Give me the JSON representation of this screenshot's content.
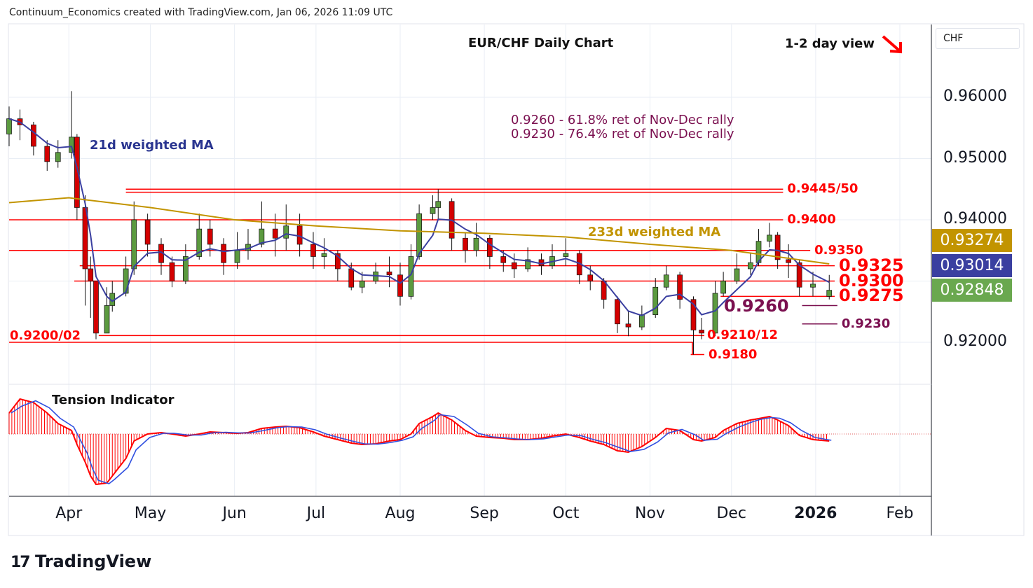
{
  "header": {
    "credit": "Continuum_Economics created with TradingView.com, Jan 06, 2026 11:09 UTC",
    "title": "EUR/CHF Daily Chart",
    "view": "1-2 day view",
    "currency": "CHF",
    "logo": "TradingView"
  },
  "colors": {
    "up": "#5b9a3f",
    "down": "#d40000",
    "ma21": "#3a3fa0",
    "ma233": "#c29400",
    "level": "#ff0000",
    "fib": "#7b1050",
    "tension_hist": "#ff0000",
    "tension_line": "#3050e0"
  },
  "chart_data": {
    "type": "candlestick",
    "title": "EUR/CHF Daily Chart",
    "ylim": [
      0.914,
      0.965
    ],
    "y_ticks": [
      "0.96000",
      "0.95000",
      "0.94000",
      "0.92000"
    ],
    "y_tick_values": [
      0.96,
      0.95,
      0.94,
      0.92
    ],
    "x_ticks": [
      {
        "label": "Apr",
        "date": "2025-04-01"
      },
      {
        "label": "May",
        "date": "2025-05-01"
      },
      {
        "label": "Jun",
        "date": "2025-06-01"
      },
      {
        "label": "Jul",
        "date": "2025-07-01"
      },
      {
        "label": "Aug",
        "date": "2025-08-01"
      },
      {
        "label": "Sep",
        "date": "2025-09-01"
      },
      {
        "label": "Oct",
        "date": "2025-10-01"
      },
      {
        "label": "Nov",
        "date": "2025-11-01"
      },
      {
        "label": "Dec",
        "date": "2025-12-01"
      },
      {
        "label": "2026",
        "date": "2026-01-01"
      },
      {
        "label": "Feb",
        "date": "2026-02-01"
      }
    ],
    "candle_fields": [
      "date",
      "open",
      "high",
      "low",
      "close",
      "tension"
    ],
    "candles": [
      [
        "2025-03-10",
        0.954,
        0.9585,
        0.952,
        0.9565,
        30
      ],
      [
        "2025-03-14",
        0.9565,
        0.958,
        0.953,
        0.9555,
        50
      ],
      [
        "2025-03-19",
        0.9555,
        0.956,
        0.9505,
        0.952,
        45
      ],
      [
        "2025-03-24",
        0.952,
        0.953,
        0.948,
        0.9495,
        30
      ],
      [
        "2025-03-28",
        0.9495,
        0.953,
        0.9485,
        0.951,
        15
      ],
      [
        "2025-04-02",
        0.951,
        0.961,
        0.95,
        0.9535,
        5
      ],
      [
        "2025-04-04",
        0.9535,
        0.954,
        0.94,
        0.942,
        -15
      ],
      [
        "2025-04-07",
        0.942,
        0.944,
        0.926,
        0.932,
        -40
      ],
      [
        "2025-04-09",
        0.932,
        0.934,
        0.924,
        0.93,
        -60
      ],
      [
        "2025-04-11",
        0.93,
        0.93,
        0.9205,
        0.9215,
        -72
      ],
      [
        "2025-04-15",
        0.9215,
        0.929,
        0.9215,
        0.926,
        -70
      ],
      [
        "2025-04-17",
        0.926,
        0.93,
        0.925,
        0.928,
        -60
      ],
      [
        "2025-04-22",
        0.928,
        0.934,
        0.9275,
        0.932,
        -35
      ],
      [
        "2025-04-25",
        0.932,
        0.943,
        0.931,
        0.94,
        -10
      ],
      [
        "2025-04-30",
        0.94,
        0.941,
        0.934,
        0.936,
        0
      ],
      [
        "2025-05-05",
        0.936,
        0.937,
        0.931,
        0.933,
        2
      ],
      [
        "2025-05-09",
        0.933,
        0.934,
        0.929,
        0.93,
        0
      ],
      [
        "2025-05-14",
        0.93,
        0.936,
        0.9295,
        0.934,
        -3
      ],
      [
        "2025-05-19",
        0.934,
        0.941,
        0.9335,
        0.9385,
        0
      ],
      [
        "2025-05-23",
        0.9385,
        0.94,
        0.934,
        0.936,
        3
      ],
      [
        "2025-05-28",
        0.936,
        0.937,
        0.931,
        0.933,
        2
      ],
      [
        "2025-06-02",
        0.933,
        0.938,
        0.932,
        0.935,
        1
      ],
      [
        "2025-06-06",
        0.935,
        0.9385,
        0.9335,
        0.936,
        2
      ],
      [
        "2025-06-11",
        0.936,
        0.943,
        0.9355,
        0.9385,
        8
      ],
      [
        "2025-06-16",
        0.9385,
        0.941,
        0.934,
        0.937,
        10
      ],
      [
        "2025-06-20",
        0.937,
        0.9425,
        0.935,
        0.939,
        11
      ],
      [
        "2025-06-25",
        0.939,
        0.941,
        0.934,
        0.936,
        9
      ],
      [
        "2025-06-30",
        0.936,
        0.938,
        0.932,
        0.934,
        3
      ],
      [
        "2025-07-04",
        0.934,
        0.937,
        0.932,
        0.9345,
        -3
      ],
      [
        "2025-07-09",
        0.9345,
        0.935,
        0.93,
        0.932,
        -8
      ],
      [
        "2025-07-14",
        0.932,
        0.933,
        0.9285,
        0.929,
        -13
      ],
      [
        "2025-07-18",
        0.929,
        0.9315,
        0.928,
        0.93,
        -15
      ],
      [
        "2025-07-23",
        0.93,
        0.933,
        0.9295,
        0.9315,
        -14
      ],
      [
        "2025-07-28",
        0.9315,
        0.934,
        0.929,
        0.931,
        -10
      ],
      [
        "2025-08-01",
        0.931,
        0.933,
        0.926,
        0.9275,
        -8
      ],
      [
        "2025-08-05",
        0.9275,
        0.936,
        0.927,
        0.934,
        0
      ],
      [
        "2025-08-08",
        0.934,
        0.9425,
        0.9335,
        0.941,
        15
      ],
      [
        "2025-08-13",
        0.941,
        0.944,
        0.94,
        0.942,
        25
      ],
      [
        "2025-08-15",
        0.942,
        0.945,
        0.94,
        0.943,
        30
      ],
      [
        "2025-08-20",
        0.943,
        0.9435,
        0.935,
        0.937,
        20
      ],
      [
        "2025-08-25",
        0.937,
        0.938,
        0.933,
        0.935,
        5
      ],
      [
        "2025-08-29",
        0.935,
        0.9395,
        0.934,
        0.937,
        -3
      ],
      [
        "2025-09-03",
        0.937,
        0.9375,
        0.932,
        0.934,
        -5
      ],
      [
        "2025-09-08",
        0.934,
        0.935,
        0.9315,
        0.933,
        -6
      ],
      [
        "2025-09-12",
        0.933,
        0.9345,
        0.9305,
        0.932,
        -8
      ],
      [
        "2025-09-17",
        0.932,
        0.9355,
        0.9315,
        0.9335,
        -8
      ],
      [
        "2025-09-22",
        0.9335,
        0.9345,
        0.931,
        0.9325,
        -6
      ],
      [
        "2025-09-26",
        0.9325,
        0.936,
        0.932,
        0.934,
        -3
      ],
      [
        "2025-10-01",
        0.934,
        0.937,
        0.9325,
        0.9345,
        0
      ],
      [
        "2025-10-06",
        0.9345,
        0.935,
        0.9295,
        0.931,
        -5
      ],
      [
        "2025-10-10",
        0.931,
        0.9325,
        0.9285,
        0.93,
        -10
      ],
      [
        "2025-10-15",
        0.93,
        0.9305,
        0.9255,
        0.927,
        -15
      ],
      [
        "2025-10-20",
        0.927,
        0.9275,
        0.9215,
        0.923,
        -24
      ],
      [
        "2025-10-24",
        0.923,
        0.925,
        0.921,
        0.9225,
        -26
      ],
      [
        "2025-10-29",
        0.9225,
        0.926,
        0.922,
        0.9245,
        -18
      ],
      [
        "2025-11-03",
        0.9245,
        0.9305,
        0.924,
        0.929,
        -5
      ],
      [
        "2025-11-07",
        0.929,
        0.9325,
        0.9285,
        0.931,
        8
      ],
      [
        "2025-11-12",
        0.931,
        0.9315,
        0.9255,
        0.927,
        5
      ],
      [
        "2025-11-17",
        0.927,
        0.9275,
        0.918,
        0.922,
        -8
      ],
      [
        "2025-11-20",
        0.922,
        0.924,
        0.9205,
        0.9215,
        -10
      ],
      [
        "2025-11-25",
        0.9215,
        0.93,
        0.921,
        0.928,
        -5
      ],
      [
        "2025-11-28",
        0.928,
        0.9315,
        0.9275,
        0.93,
        5
      ],
      [
        "2025-12-03",
        0.93,
        0.9345,
        0.9295,
        0.932,
        15
      ],
      [
        "2025-12-08",
        0.932,
        0.9345,
        0.931,
        0.933,
        20
      ],
      [
        "2025-12-11",
        0.933,
        0.9385,
        0.9325,
        0.9365,
        22
      ],
      [
        "2025-12-15",
        0.9365,
        0.9395,
        0.9355,
        0.9375,
        25
      ],
      [
        "2025-12-18",
        0.9375,
        0.938,
        0.932,
        0.9335,
        20
      ],
      [
        "2025-12-22",
        0.9335,
        0.936,
        0.9305,
        0.933,
        12
      ],
      [
        "2025-12-26",
        0.933,
        0.9335,
        0.9275,
        0.929,
        -2
      ],
      [
        "2025-12-31",
        0.929,
        0.9315,
        0.9275,
        0.9295,
        -8
      ],
      [
        "2026-01-06",
        0.9275,
        0.931,
        0.927,
        0.9285,
        -10
      ]
    ],
    "ma233": [
      [
        "2025-03-10",
        0.9428
      ],
      [
        "2025-04-01",
        0.9436
      ],
      [
        "2025-05-01",
        0.942
      ],
      [
        "2025-06-01",
        0.94
      ],
      [
        "2025-07-01",
        0.939
      ],
      [
        "2025-08-01",
        0.9382
      ],
      [
        "2025-09-01",
        0.9378
      ],
      [
        "2025-10-01",
        0.9372
      ],
      [
        "2025-11-01",
        0.936
      ],
      [
        "2025-12-01",
        0.935
      ],
      [
        "2026-01-06",
        0.9328
      ]
    ],
    "last_values": {
      "ma233": "0.93274",
      "ma21": "0.93014",
      "close": "0.92848"
    },
    "indicator": {
      "name": "Tension Indicator",
      "ylim": [
        -80,
        80
      ]
    },
    "legend": {
      "ma21": "21d weighted MA",
      "ma233": "233d weighted MA"
    }
  },
  "levels": [
    {
      "price": 0.945,
      "from": "2025-04-22",
      "to": "2025-12-20",
      "label": "0.9445/50",
      "kind": "res",
      "size": 18
    },
    {
      "price": 0.9445,
      "from": "2025-04-22",
      "to": "2025-12-20",
      "label": "",
      "kind": "res",
      "size": 18
    },
    {
      "price": 0.94,
      "from": "2025-03-10",
      "to": "2025-12-20",
      "label": "0.9400",
      "kind": "res",
      "size": 18
    },
    {
      "price": 0.935,
      "from": "2025-03-10",
      "to": "2025-12-30",
      "label": "0.9350",
      "kind": "res",
      "size": 18
    },
    {
      "price": 0.9325,
      "from": "2025-04-05",
      "to": "2026-01-08",
      "label": "0.9325",
      "kind": "res",
      "size": 24
    },
    {
      "price": 0.93,
      "from": "2025-04-03",
      "to": "2026-01-08",
      "label": "0.9300",
      "kind": "res",
      "size": 24
    },
    {
      "price": 0.9275,
      "from": "2025-11-27",
      "to": "2026-01-08",
      "label": "0.9275",
      "kind": "sup",
      "size": 24
    },
    {
      "price": 0.926,
      "from": "2025-12-27",
      "to": "2026-01-09",
      "label": "0.9260",
      "kind": "fib",
      "size": 24
    },
    {
      "price": 0.923,
      "from": "2025-12-27",
      "to": "2026-01-09",
      "label": "0.9230",
      "kind": "fib",
      "size": 18
    },
    {
      "price": 0.9211,
      "from": "2025-04-12",
      "to": "2025-11-21",
      "label": "0.9210/12",
      "kind": "sup",
      "size": 18
    },
    {
      "price": 0.92,
      "from": "2025-03-10",
      "to": "2025-11-17",
      "label": "0.9200/02",
      "kind": "sup",
      "size": 18
    },
    {
      "price": 0.918,
      "from": "2025-11-16",
      "to": "2025-11-21",
      "label": "0.9180",
      "kind": "sup",
      "size": 18
    }
  ],
  "notes": {
    "fib1": "0.9260 - 61.8% ret of Nov-Dec rally",
    "fib2": "0.9230 - 76.4% ret of Nov-Dec rally"
  }
}
